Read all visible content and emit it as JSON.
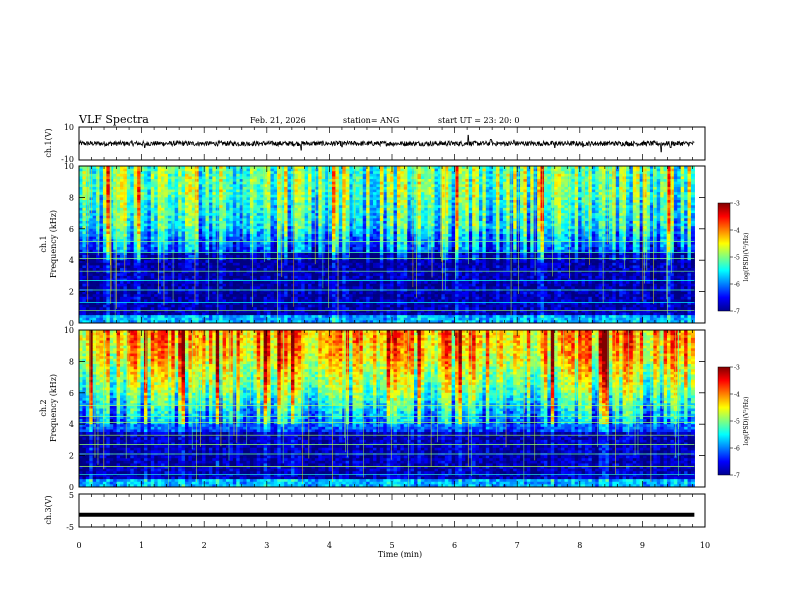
{
  "header": {
    "title": "VLF Spectra",
    "date": "Feb. 21, 2026",
    "station": "station= ANG",
    "start_ut": "start UT =   23: 20: 0"
  },
  "chart_data": [
    {
      "type": "line",
      "name": "ch1-waveform",
      "ylabel": "ch.1(V)",
      "ylim": [
        -10,
        10
      ],
      "y_ticks": [
        "10",
        "-10"
      ],
      "xlim": [
        0,
        10
      ],
      "baseline": 0,
      "amplitude_typical": 1.5,
      "spikes": [
        {
          "t": 1.05,
          "v": -2.5
        },
        {
          "t": 3.55,
          "v": -4.0
        },
        {
          "t": 4.2,
          "v": -2.0
        },
        {
          "t": 6.22,
          "v": 5.0
        },
        {
          "t": 6.58,
          "v": 2.5
        },
        {
          "t": 6.95,
          "v": 2.0
        },
        {
          "t": 7.6,
          "v": -2.5
        },
        {
          "t": 8.05,
          "v": -2.0
        },
        {
          "t": 9.3,
          "v": -5.0
        },
        {
          "t": 9.45,
          "v": -2.5
        }
      ]
    },
    {
      "type": "heatmap",
      "name": "ch1-spectrogram",
      "ylabel": "ch.1\nFrequency (kHz)",
      "ylabel_lines": [
        "ch.1",
        "Frequency (kHz)"
      ],
      "xlim": [
        0,
        10
      ],
      "ylim": [
        0,
        10
      ],
      "y_ticks": [
        "0",
        "2",
        "4",
        "6",
        "8",
        "10"
      ],
      "colorbar": {
        "label": "log(PSD)(V²/Hz)",
        "range": [
          -7,
          -3
        ],
        "ticks": [
          "-3",
          "-4",
          "-5",
          "-6",
          "-7"
        ]
      },
      "data_end_min": 9.83,
      "description_levels": {
        "0-0.5kHz": -5.8,
        "0.5-4.5kHz": -6.8,
        "4.5-6kHz": -6.2,
        "6-8kHz": -5.4,
        "8-10kHz": -5.0
      }
    },
    {
      "type": "heatmap",
      "name": "ch2-spectrogram",
      "ylabel": "ch.2\nFrequency (kHz)",
      "ylabel_lines": [
        "ch.2",
        "Frequency (kHz)"
      ],
      "xlim": [
        0,
        10
      ],
      "ylim": [
        0,
        10
      ],
      "y_ticks": [
        "0",
        "2",
        "4",
        "6",
        "8",
        "10"
      ],
      "colorbar": {
        "label": "log(PSD)(V²/Hz)",
        "range": [
          -7,
          -3
        ],
        "ticks": [
          "-3",
          "-4",
          "-5",
          "-6",
          "-7"
        ]
      },
      "data_end_min": 9.83,
      "description_levels": {
        "0-0.5kHz": -5.8,
        "0.5-3.5kHz": -6.8,
        "3.5-6kHz": -5.9,
        "6-8kHz": -5.0,
        "8-10kHz": -4.2
      }
    },
    {
      "type": "line",
      "name": "ch3-waveform",
      "ylabel": "ch.3(V)",
      "ylim": [
        -5,
        5
      ],
      "y_ticks": [
        "5",
        "-5"
      ],
      "xlim": [
        0,
        10
      ],
      "baseline": -1.3,
      "data_end_min": 9.83
    }
  ],
  "x_axis": {
    "label": "Time (min)",
    "ticks": [
      "0",
      "1",
      "2",
      "3",
      "4",
      "5",
      "6",
      "7",
      "8",
      "9",
      "10"
    ]
  }
}
